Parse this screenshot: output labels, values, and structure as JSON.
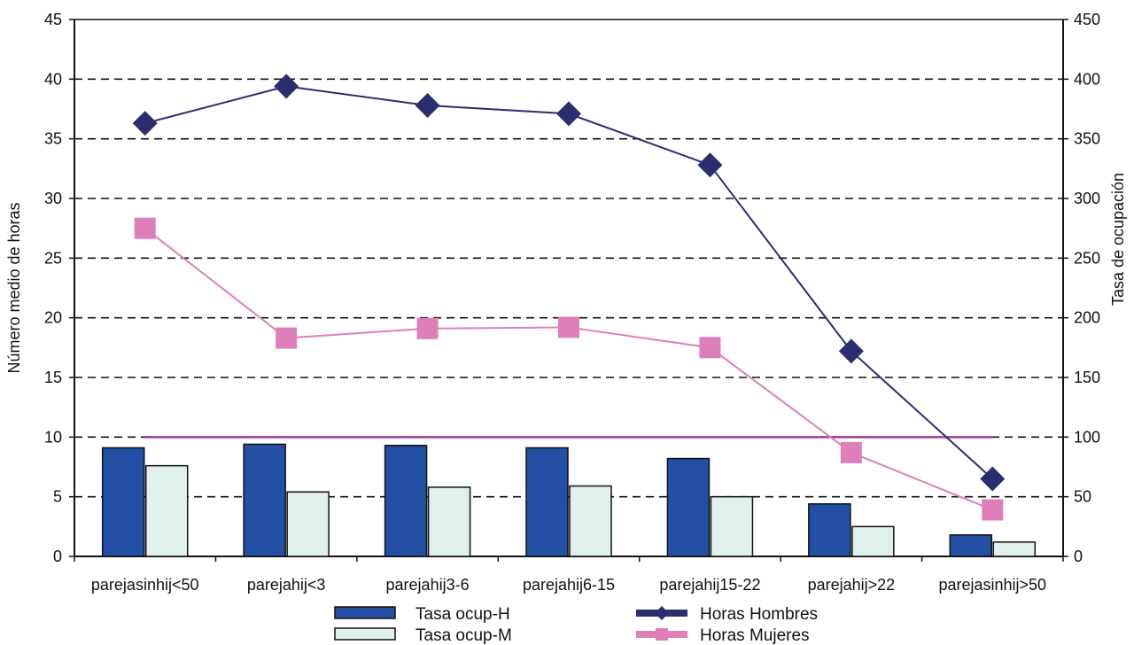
{
  "chart_data": {
    "type": "bar",
    "categories": [
      "parejasinhij<50",
      "parejahij<3",
      "parejahij3-6",
      "parejahij6-15",
      "parejahij15-22",
      "parejahij>22",
      "parejasinhij>50"
    ],
    "ylabel_left": "Número medio de horas",
    "ylabel_right": "Tasa de ocupación",
    "ylim_left": [
      0,
      45
    ],
    "ylim_right": [
      0,
      450
    ],
    "yticks_left": [
      "0",
      "5",
      "10",
      "15",
      "20",
      "25",
      "30",
      "35",
      "40",
      "45"
    ],
    "yticks_right": [
      "0",
      "50",
      "100",
      "150",
      "200",
      "250",
      "300",
      "350",
      "400",
      "450"
    ],
    "grid": "dashed horizontal",
    "legend_position": "bottom",
    "bar_series": [
      {
        "name": "Tasa ocup-H",
        "color": "#2350a4",
        "values": [
          91,
          94,
          93,
          91,
          82,
          44,
          18
        ]
      },
      {
        "name": "Tasa ocup-M",
        "color": "#e0f0ec",
        "values": [
          76,
          54,
          58,
          59,
          50,
          25,
          12
        ]
      }
    ],
    "line_series": [
      {
        "name": "Horas Hombres",
        "color": "#2a2e6e",
        "marker": "diamond",
        "values": [
          36.3,
          39.4,
          37.8,
          37.1,
          32.8,
          17.2,
          6.5
        ]
      },
      {
        "name": "Horas Mujeres",
        "color": "#dd7fb9",
        "marker": "square",
        "values": [
          27.5,
          18.3,
          19.1,
          19.2,
          17.5,
          8.7,
          3.9
        ]
      }
    ],
    "reference_line": {
      "color": "#a03a96",
      "value": 100
    }
  }
}
